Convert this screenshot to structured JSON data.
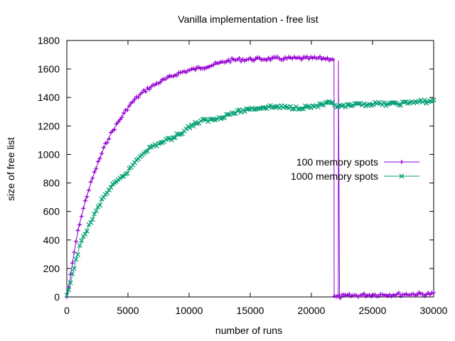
{
  "chart_data": {
    "type": "line",
    "title": "Vanilla implementation - free list",
    "xlabel": "number of runs",
    "ylabel": "size of free list",
    "xlim": [
      0,
      30000
    ],
    "ylim": [
      0,
      1800
    ],
    "xticks": [
      0,
      5000,
      10000,
      15000,
      20000,
      25000,
      30000
    ],
    "yticks": [
      0,
      200,
      400,
      600,
      800,
      1000,
      1200,
      1400,
      1600,
      1800
    ],
    "grid": false,
    "legend_position": "right",
    "series": [
      {
        "name": "100 memory spots",
        "color": "#9400d3",
        "marker": "plus",
        "x": [
          0,
          250,
          500,
          750,
          1000,
          1500,
          2000,
          2500,
          3000,
          3500,
          4000,
          4500,
          5000,
          5500,
          6000,
          6500,
          7000,
          7500,
          8000,
          8500,
          9000,
          9500,
          10000,
          10500,
          11000,
          11500,
          12000,
          12500,
          13000,
          13500,
          14000,
          14500,
          15000,
          16000,
          17000,
          18000,
          19000,
          20000,
          21000,
          21850,
          21860,
          22000,
          22200,
          22210,
          22300,
          22500,
          23000,
          23500,
          24000,
          24500,
          25000,
          25500,
          26000,
          26500,
          27000,
          27500,
          28000,
          28500,
          29000,
          29500,
          30000
        ],
        "y": [
          0,
          120,
          260,
          390,
          500,
          670,
          810,
          930,
          1040,
          1130,
          1200,
          1265,
          1330,
          1380,
          1420,
          1455,
          1480,
          1505,
          1525,
          1545,
          1565,
          1580,
          1590,
          1600,
          1610,
          1620,
          1630,
          1640,
          1655,
          1662,
          1665,
          1667,
          1668,
          1670,
          1672,
          1673,
          1674,
          1674,
          1675,
          1670,
          0,
          0,
          0,
          1660,
          0,
          5,
          8,
          10,
          12,
          14,
          15,
          16,
          17,
          17,
          18,
          18,
          19,
          20,
          20,
          20,
          22
        ]
      },
      {
        "name": "1000 memory spots",
        "color": "#009e73",
        "marker": "cross",
        "x": [
          0,
          250,
          500,
          750,
          1000,
          1500,
          2000,
          2500,
          3000,
          3500,
          4000,
          4500,
          5000,
          5500,
          6000,
          6500,
          7000,
          7500,
          8000,
          8500,
          9000,
          9500,
          10000,
          10500,
          11000,
          12000,
          13000,
          14000,
          15000,
          16000,
          17000,
          18000,
          19000,
          20000,
          21000,
          21500,
          22000,
          22500,
          23000,
          24000,
          25000,
          26000,
          27000,
          28000,
          29000,
          30000
        ],
        "y": [
          0,
          80,
          170,
          260,
          340,
          450,
          530,
          620,
          700,
          760,
          800,
          840,
          880,
          940,
          990,
          1030,
          1055,
          1075,
          1095,
          1110,
          1135,
          1160,
          1195,
          1215,
          1235,
          1245,
          1275,
          1300,
          1320,
          1330,
          1335,
          1330,
          1330,
          1335,
          1350,
          1360,
          1340,
          1335,
          1340,
          1350,
          1355,
          1355,
          1355,
          1365,
          1370,
          1375
        ]
      }
    ]
  }
}
